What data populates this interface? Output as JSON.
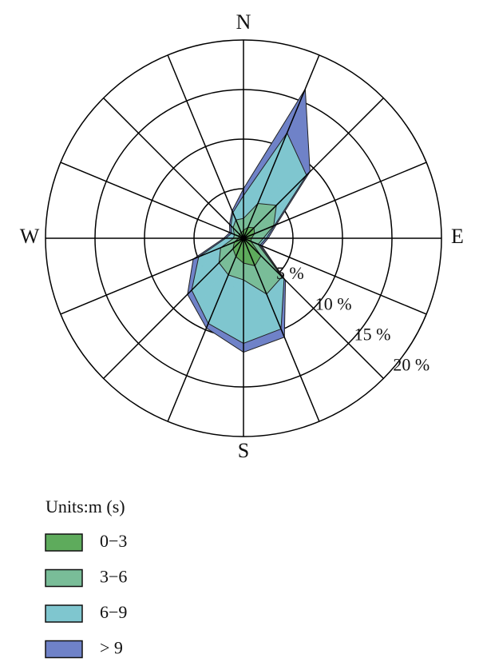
{
  "chart_data": {
    "type": "windrose",
    "categories": [
      "N",
      null,
      null,
      null,
      "E",
      null,
      null,
      null,
      "S",
      null,
      null,
      null,
      "W",
      null,
      null,
      null
    ],
    "ylim": [
      0,
      20
    ],
    "yticks": [
      {
        "value": 5,
        "label": "5 %"
      },
      {
        "value": 10,
        "label": "10 %"
      },
      {
        "value": 15,
        "label": "15 %"
      },
      {
        "value": 20,
        "label": "20 %"
      }
    ],
    "legend_title": "Units:m (s)",
    "series": [
      {
        "name": "0−3",
        "color": "#5eab5c",
        "values": [
          0.8,
          1.2,
          1.5,
          1.2,
          0.8,
          0.8,
          2.5,
          3,
          2.5,
          2,
          1.5,
          1,
          0.5,
          0.5,
          0.6,
          0.6
        ]
      },
      {
        "name": "3−6",
        "color": "#79bd98",
        "values": [
          1.2,
          2.6,
          3.2,
          2.1,
          1.2,
          0.8,
          3,
          3.1,
          1.7,
          2,
          2,
          1.5,
          0.5,
          0.5,
          0.9,
          1.4
        ]
      },
      {
        "name": "6−9",
        "color": "#7fc6cf",
        "values": [
          2.3,
          7.7,
          4.3,
          0.1,
          0.3,
          0.2,
          0.3,
          3.8,
          6.4,
          5.3,
          3.9,
          2.4,
          0.8,
          0.3,
          0.3,
          0.8
        ]
      },
      {
        "name": "> 9",
        "color": "#6f82c8",
        "values": [
          0.7,
          4.8,
          0.5,
          0.2,
          0.2,
          0.2,
          0.2,
          0.9,
          0.9,
          0.5,
          0.6,
          0.6,
          0.2,
          0.2,
          0.2,
          0.2
        ]
      }
    ]
  }
}
